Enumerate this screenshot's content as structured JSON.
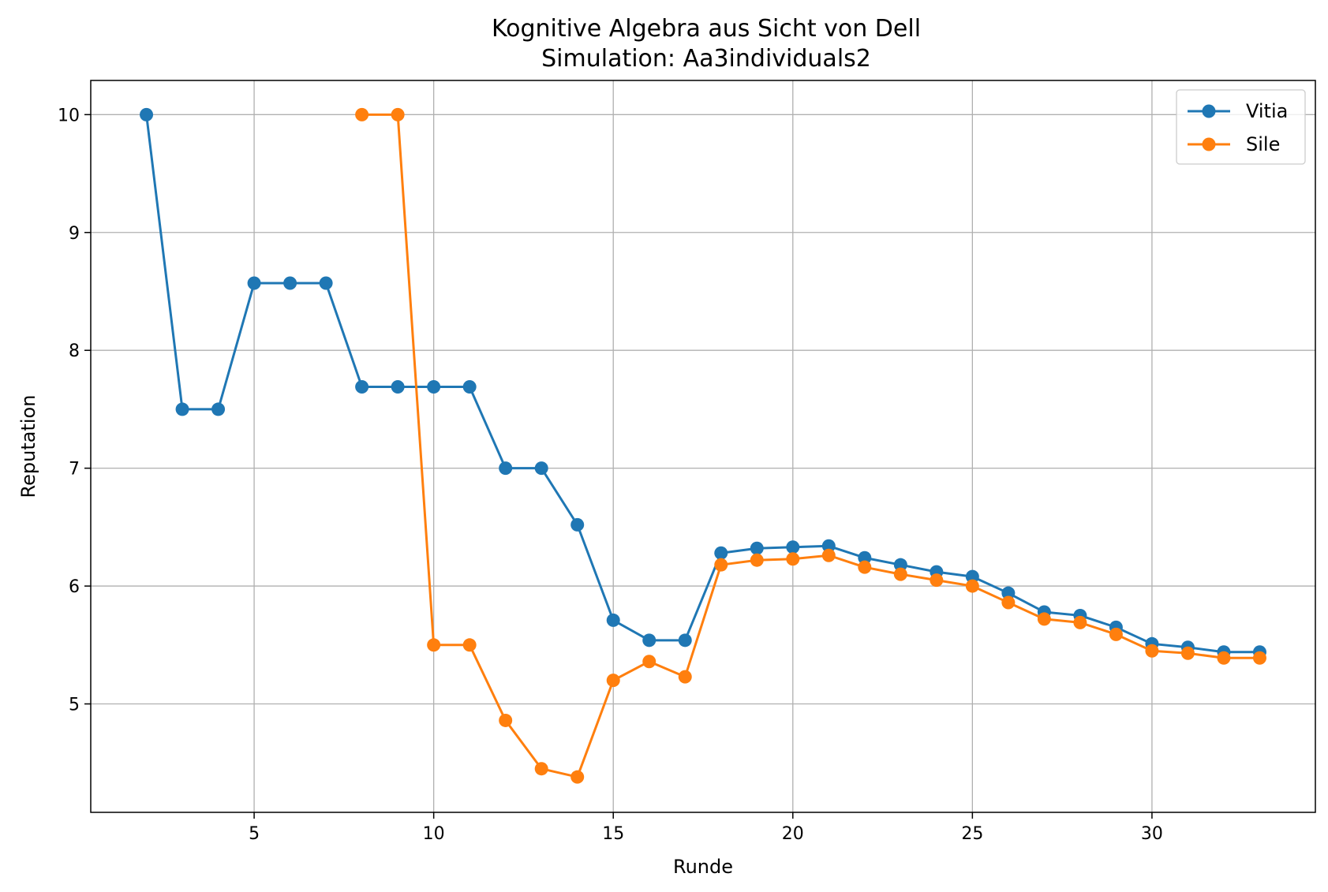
{
  "chart_data": {
    "type": "line",
    "title": "Kognitive Algebra aus Sicht von Dell",
    "subtitle": "Simulation: Aa3individuals2",
    "xlabel": "Runde",
    "ylabel": "Reputation",
    "xlim": [
      0.45,
      34.55
    ],
    "ylim": [
      4.08,
      10.29
    ],
    "xticks": [
      5,
      10,
      15,
      20,
      25,
      30
    ],
    "yticks": [
      5,
      6,
      7,
      8,
      9,
      10
    ],
    "grid": true,
    "legend": "top-right",
    "series": [
      {
        "name": "Vitia",
        "color": "#1f77b4",
        "x": [
          2,
          3,
          4,
          5,
          6,
          7,
          8,
          9,
          10,
          11,
          12,
          13,
          14,
          15,
          16,
          17,
          18,
          19,
          20,
          21,
          22,
          23,
          24,
          25,
          26,
          27,
          28,
          29,
          30,
          31,
          32,
          33
        ],
        "y": [
          10.0,
          7.5,
          7.5,
          8.57,
          8.57,
          8.57,
          7.69,
          7.69,
          7.69,
          7.69,
          7.0,
          7.0,
          6.52,
          5.71,
          5.54,
          5.54,
          6.28,
          6.32,
          6.33,
          6.34,
          6.24,
          6.18,
          6.12,
          6.08,
          5.94,
          5.78,
          5.75,
          5.65,
          5.51,
          5.48,
          5.44,
          5.44
        ]
      },
      {
        "name": "Sile",
        "color": "#ff7f0e",
        "x": [
          8,
          9,
          10,
          11,
          12,
          13,
          14,
          15,
          16,
          17,
          18,
          19,
          20,
          21,
          22,
          23,
          24,
          25,
          26,
          27,
          28,
          29,
          30,
          31,
          32,
          33
        ],
        "y": [
          10.0,
          10.0,
          5.5,
          5.5,
          4.86,
          4.45,
          4.38,
          5.2,
          5.36,
          5.23,
          6.18,
          6.22,
          6.23,
          6.26,
          6.16,
          6.1,
          6.05,
          6.0,
          5.86,
          5.72,
          5.69,
          5.59,
          5.45,
          5.43,
          5.39,
          5.39
        ]
      }
    ]
  }
}
